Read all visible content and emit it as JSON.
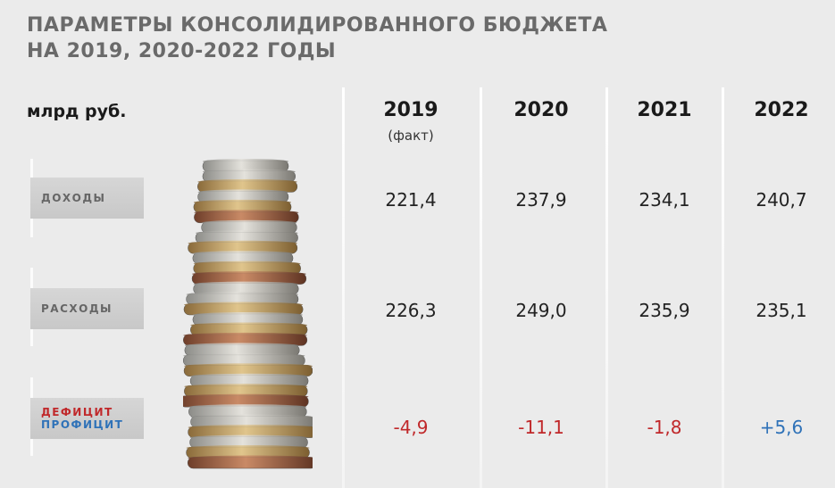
{
  "title": {
    "line1": "ПАРАМЕТРЫ КОНСОЛИДИРОВАННОГО БЮДЖЕТА",
    "line2": "НА 2019, 2020-2022 ГОДЫ"
  },
  "unit": "млрд руб.",
  "colors": {
    "deficit": "#c0282a",
    "surplus": "#2f72b8"
  },
  "chart_data": {
    "type": "table",
    "columns": [
      {
        "year": "2019",
        "note": "(факт)"
      },
      {
        "year": "2020",
        "note": ""
      },
      {
        "year": "2021",
        "note": ""
      },
      {
        "year": "2022",
        "note": ""
      }
    ],
    "rows": [
      {
        "label": "ДОХОДЫ",
        "values": [
          "221,4",
          "237,9",
          "234,1",
          "240,7"
        ]
      },
      {
        "label": "РАСХОДЫ",
        "values": [
          "226,3",
          "249,0",
          "235,9",
          "235,1"
        ]
      },
      {
        "label_deficit": "ДЕФИЦИТ",
        "label_surplus": "ПРОФИЦИТ",
        "values": [
          "-4,9",
          "-11,1",
          "-1,8",
          "+5,6"
        ]
      }
    ],
    "numeric": {
      "income": [
        221.4,
        237.9,
        234.1,
        240.7
      ],
      "expenses": [
        226.3,
        249.0,
        235.9,
        235.1
      ],
      "balance": [
        -4.9,
        -11.1,
        -1.8,
        5.6
      ]
    }
  }
}
